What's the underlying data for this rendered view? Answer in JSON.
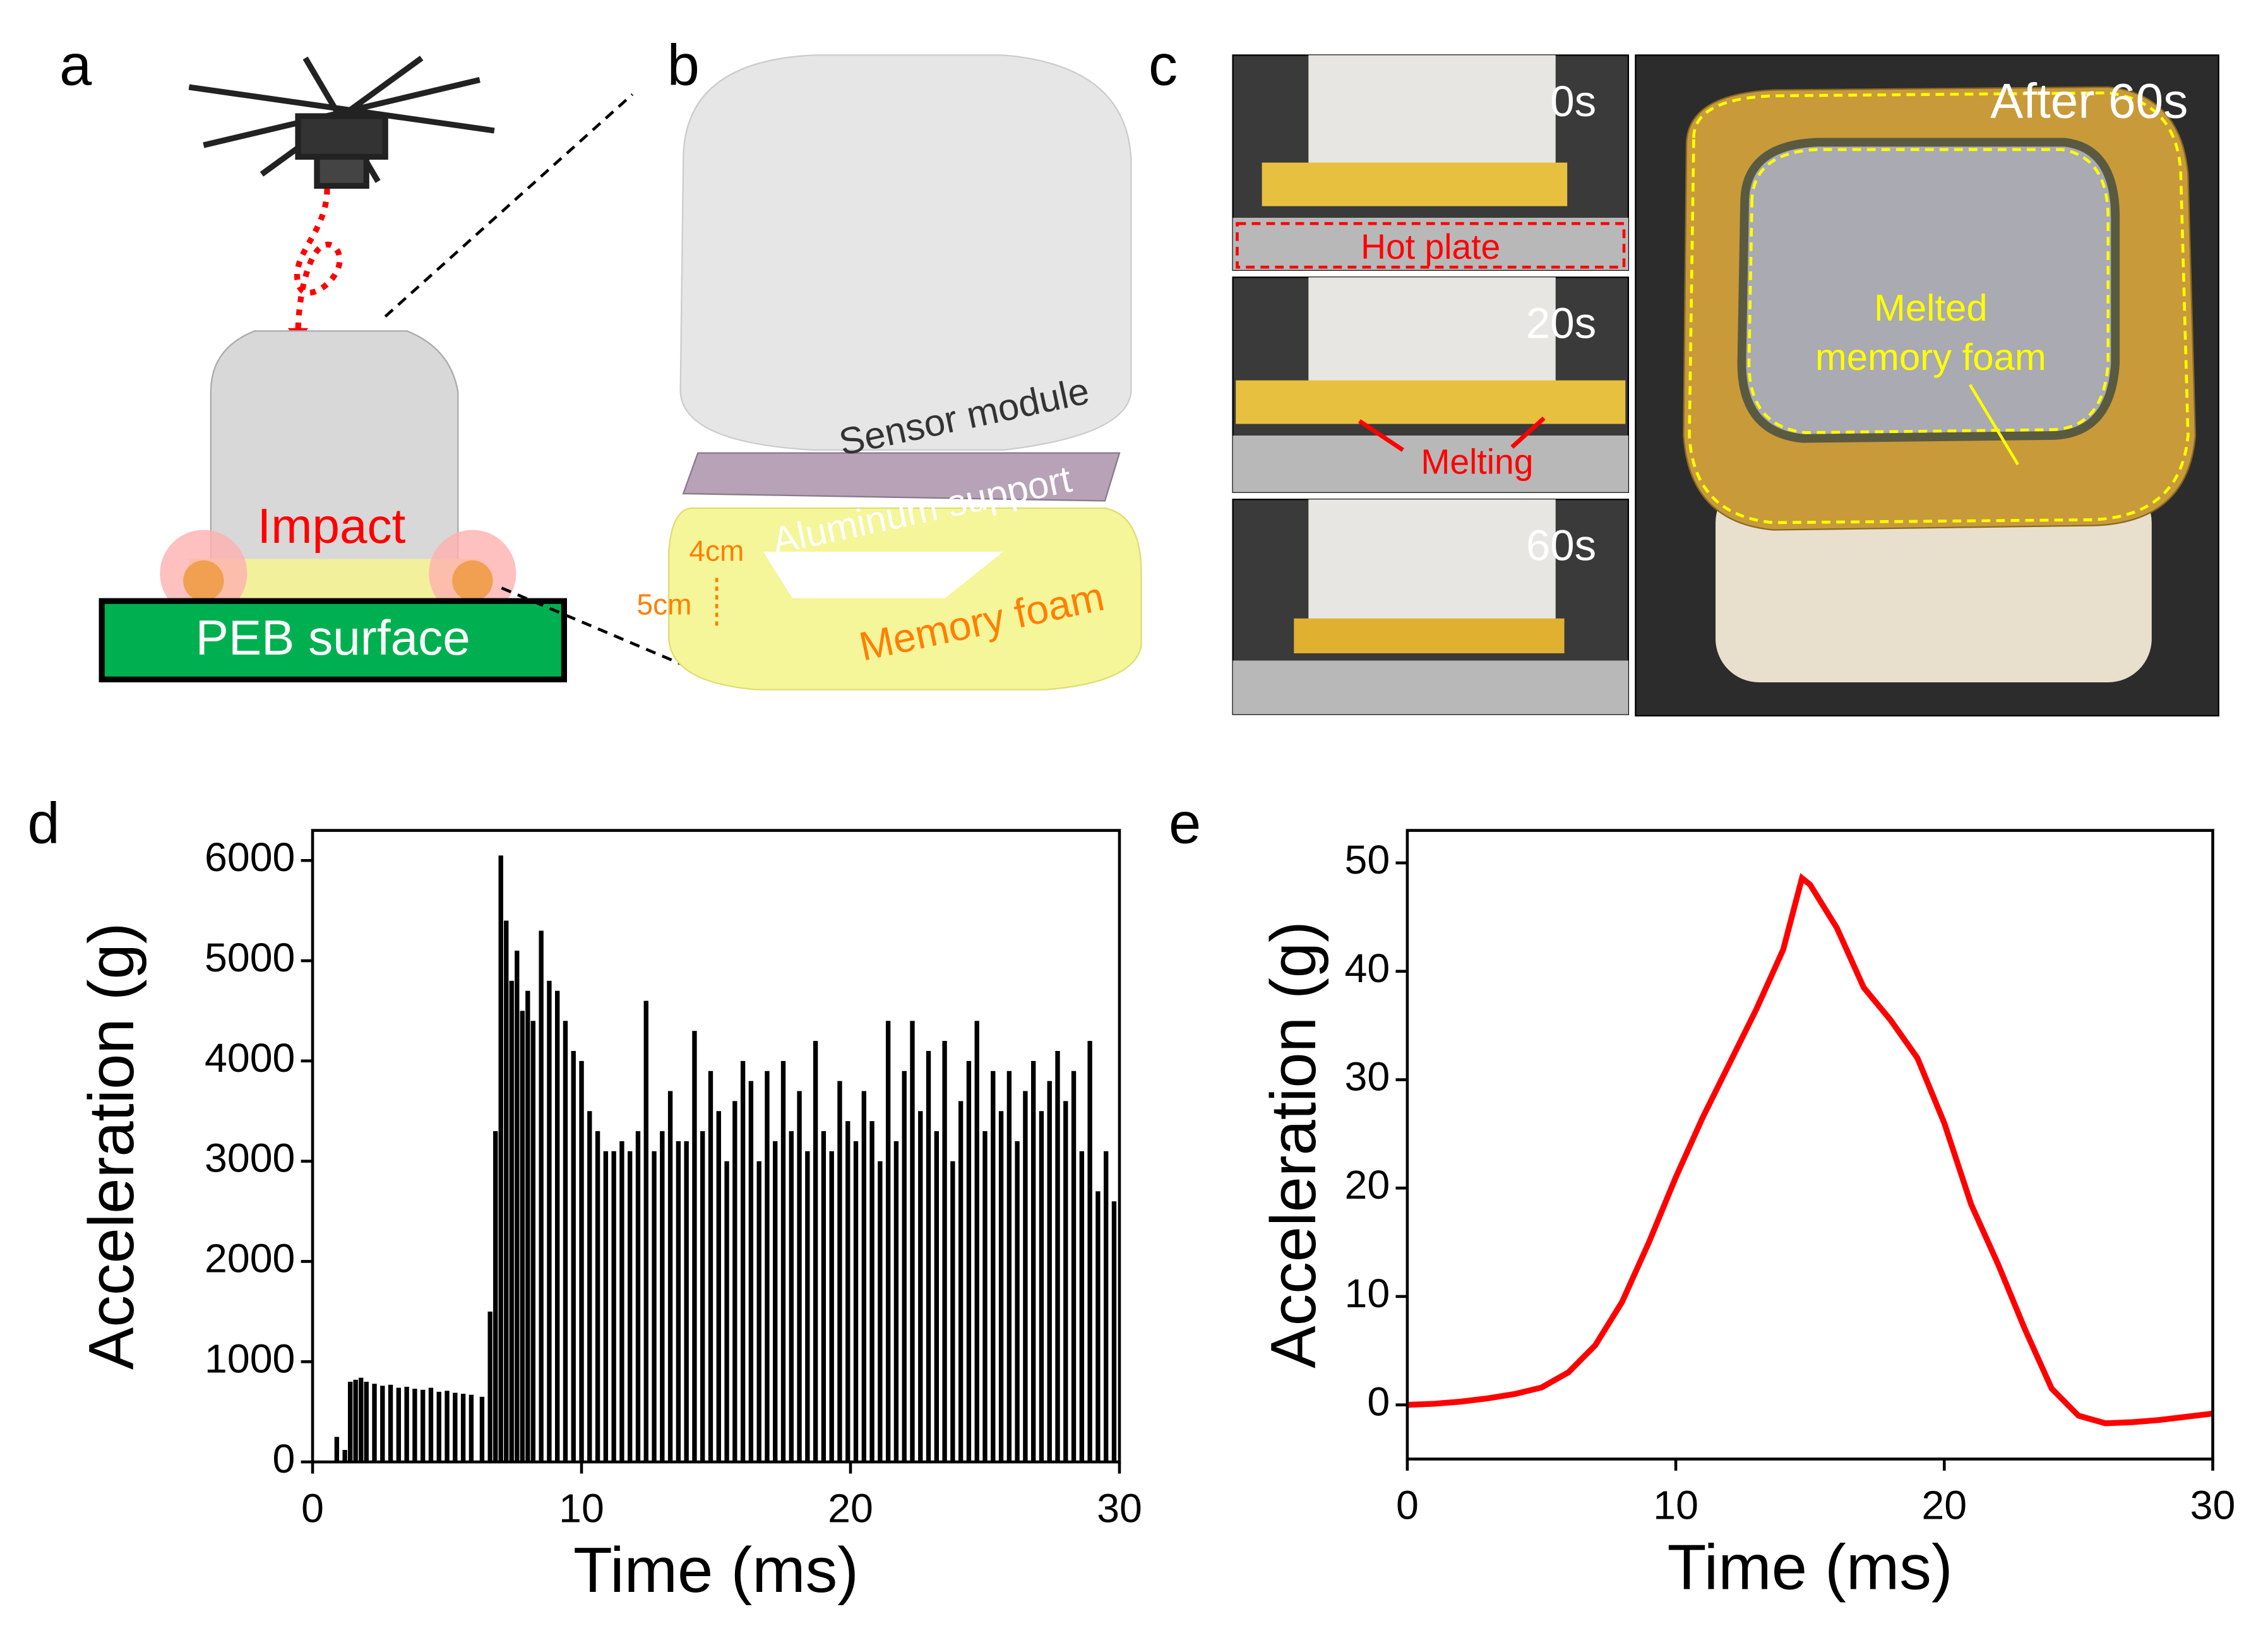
{
  "panels": {
    "a": {
      "letter": "a",
      "impact": "Impact",
      "surface": "PEB surface"
    },
    "b": {
      "letter": "b",
      "sensor": "Sensor module",
      "support": "Aluminum support",
      "width": "4cm",
      "height": "5cm",
      "foam": "Memory foam"
    },
    "c": {
      "letter": "c",
      "t0": "0s",
      "plate": "Hot plate",
      "t20": "20s",
      "melting": "Melting",
      "t60": "60s",
      "after": "After 60s",
      "melted1": "Melted",
      "melted2": "memory foam"
    },
    "d": {
      "letter": "d"
    },
    "e": {
      "letter": "e"
    }
  },
  "chart_data": [
    {
      "type": "bar",
      "xlabel": "Time (ms)",
      "ylabel": "Acceleration (g)",
      "color": "#000000",
      "x": [
        0.9,
        1.2,
        1.4,
        1.6,
        1.8,
        2.0,
        2.3,
        2.6,
        2.9,
        3.2,
        3.5,
        3.8,
        4.1,
        4.4,
        4.7,
        5.0,
        5.3,
        5.6,
        5.9,
        6.3,
        6.6,
        6.8,
        7.0,
        7.2,
        7.4,
        7.6,
        7.8,
        8.0,
        8.2,
        8.5,
        8.8,
        9.1,
        9.4,
        9.7,
        10.0,
        10.3,
        10.6,
        10.9,
        11.2,
        11.5,
        11.8,
        12.1,
        12.4,
        12.7,
        13.0,
        13.3,
        13.6,
        13.9,
        14.2,
        14.5,
        14.8,
        15.1,
        15.4,
        15.7,
        16.0,
        16.3,
        16.6,
        16.9,
        17.2,
        17.5,
        17.8,
        18.1,
        18.4,
        18.7,
        19.0,
        19.3,
        19.6,
        19.9,
        20.2,
        20.5,
        20.8,
        21.1,
        21.4,
        21.7,
        22.0,
        22.3,
        22.6,
        22.9,
        23.2,
        23.5,
        23.8,
        24.1,
        24.4,
        24.7,
        25.0,
        25.3,
        25.6,
        25.9,
        26.2,
        26.5,
        26.8,
        27.1,
        27.4,
        27.7,
        28.0,
        28.3,
        28.6,
        28.9,
        29.2,
        29.5,
        29.8
      ],
      "values": [
        250,
        120,
        800,
        820,
        840,
        800,
        780,
        760,
        770,
        740,
        750,
        730,
        720,
        740,
        700,
        710,
        690,
        680,
        670,
        650,
        1500,
        3300,
        6050,
        5400,
        4800,
        5100,
        4500,
        4700,
        4400,
        5300,
        4800,
        4700,
        4400,
        4100,
        4000,
        3500,
        3300,
        3100,
        3100,
        3200,
        3100,
        3300,
        4600,
        3100,
        3300,
        3700,
        3200,
        3200,
        4300,
        3300,
        3900,
        3500,
        3000,
        3600,
        4000,
        3800,
        3000,
        3900,
        3200,
        4000,
        3300,
        3700,
        3100,
        4200,
        3300,
        3100,
        3800,
        3400,
        3200,
        3700,
        3400,
        3000,
        4400,
        3200,
        3900,
        4400,
        3500,
        4100,
        3300,
        4200,
        3000,
        3600,
        4000,
        4400,
        3300,
        3900,
        3500,
        3900,
        3200,
        3700,
        4000,
        3500,
        3800,
        4100,
        3600,
        3900,
        3100,
        4200,
        2700,
        3100,
        2600
      ],
      "xlim": [
        0,
        30
      ],
      "ylim": [
        0,
        6300
      ],
      "xticks": [
        0,
        10,
        20,
        30
      ],
      "yticks": [
        0,
        1000,
        2000,
        3000,
        4000,
        5000,
        6000
      ]
    },
    {
      "type": "line",
      "xlabel": "Time (ms)",
      "ylabel": "Acceleration (g)",
      "color": "#ff0000",
      "x": [
        0,
        1,
        2,
        3,
        4,
        5,
        6,
        7,
        8,
        9,
        10,
        11,
        12,
        13,
        14,
        14.7,
        15,
        16,
        17,
        18,
        19,
        20,
        21,
        22,
        23,
        24,
        25,
        26,
        27,
        28,
        29,
        30
      ],
      "values": [
        0,
        0.1,
        0.3,
        0.6,
        1.0,
        1.6,
        3.0,
        5.5,
        9.5,
        15,
        21,
        26.5,
        31.5,
        36.5,
        42,
        48.6,
        48,
        44,
        38.5,
        35.5,
        32,
        26,
        18.5,
        13,
        7,
        1.5,
        -1,
        -1.7,
        -1.6,
        -1.4,
        -1.1,
        -0.8
      ],
      "xlim": [
        0,
        30
      ],
      "ylim": [
        -5,
        53
      ],
      "xticks": [
        0,
        10,
        20,
        30
      ],
      "yticks": [
        0,
        10,
        20,
        30,
        40,
        50
      ]
    }
  ]
}
